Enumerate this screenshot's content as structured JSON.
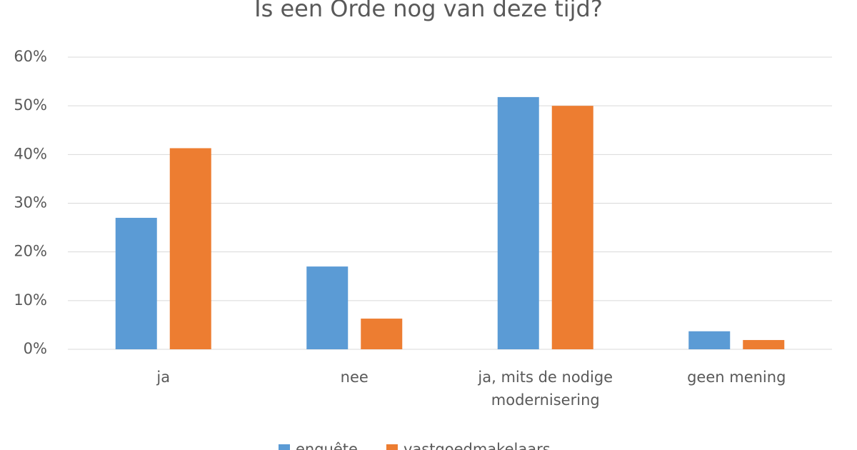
{
  "chart_data": {
    "type": "bar",
    "title": "Is een Orde nog van deze tijd?",
    "categories": [
      "ja",
      "nee",
      "ja, mits de nodige modernisering",
      "geen mening"
    ],
    "series": [
      {
        "name": "enquête",
        "color": "#5b9bd5",
        "values": [
          27,
          17,
          51.8,
          3.7
        ]
      },
      {
        "name": "vastgoedmakelaars",
        "color": "#ed7d31",
        "values": [
          41.3,
          6.3,
          50,
          1.9
        ]
      }
    ],
    "ylim": [
      0,
      60
    ],
    "yticks": [
      {
        "value": 0,
        "label": "0%"
      },
      {
        "value": 10,
        "label": "10%"
      },
      {
        "value": 20,
        "label": "20%"
      },
      {
        "value": 30,
        "label": "30%"
      },
      {
        "value": 40,
        "label": "40%"
      },
      {
        "value": 50,
        "label": "50%"
      },
      {
        "value": 60,
        "label": "60%"
      }
    ],
    "grid": true,
    "legend": "bottom"
  }
}
